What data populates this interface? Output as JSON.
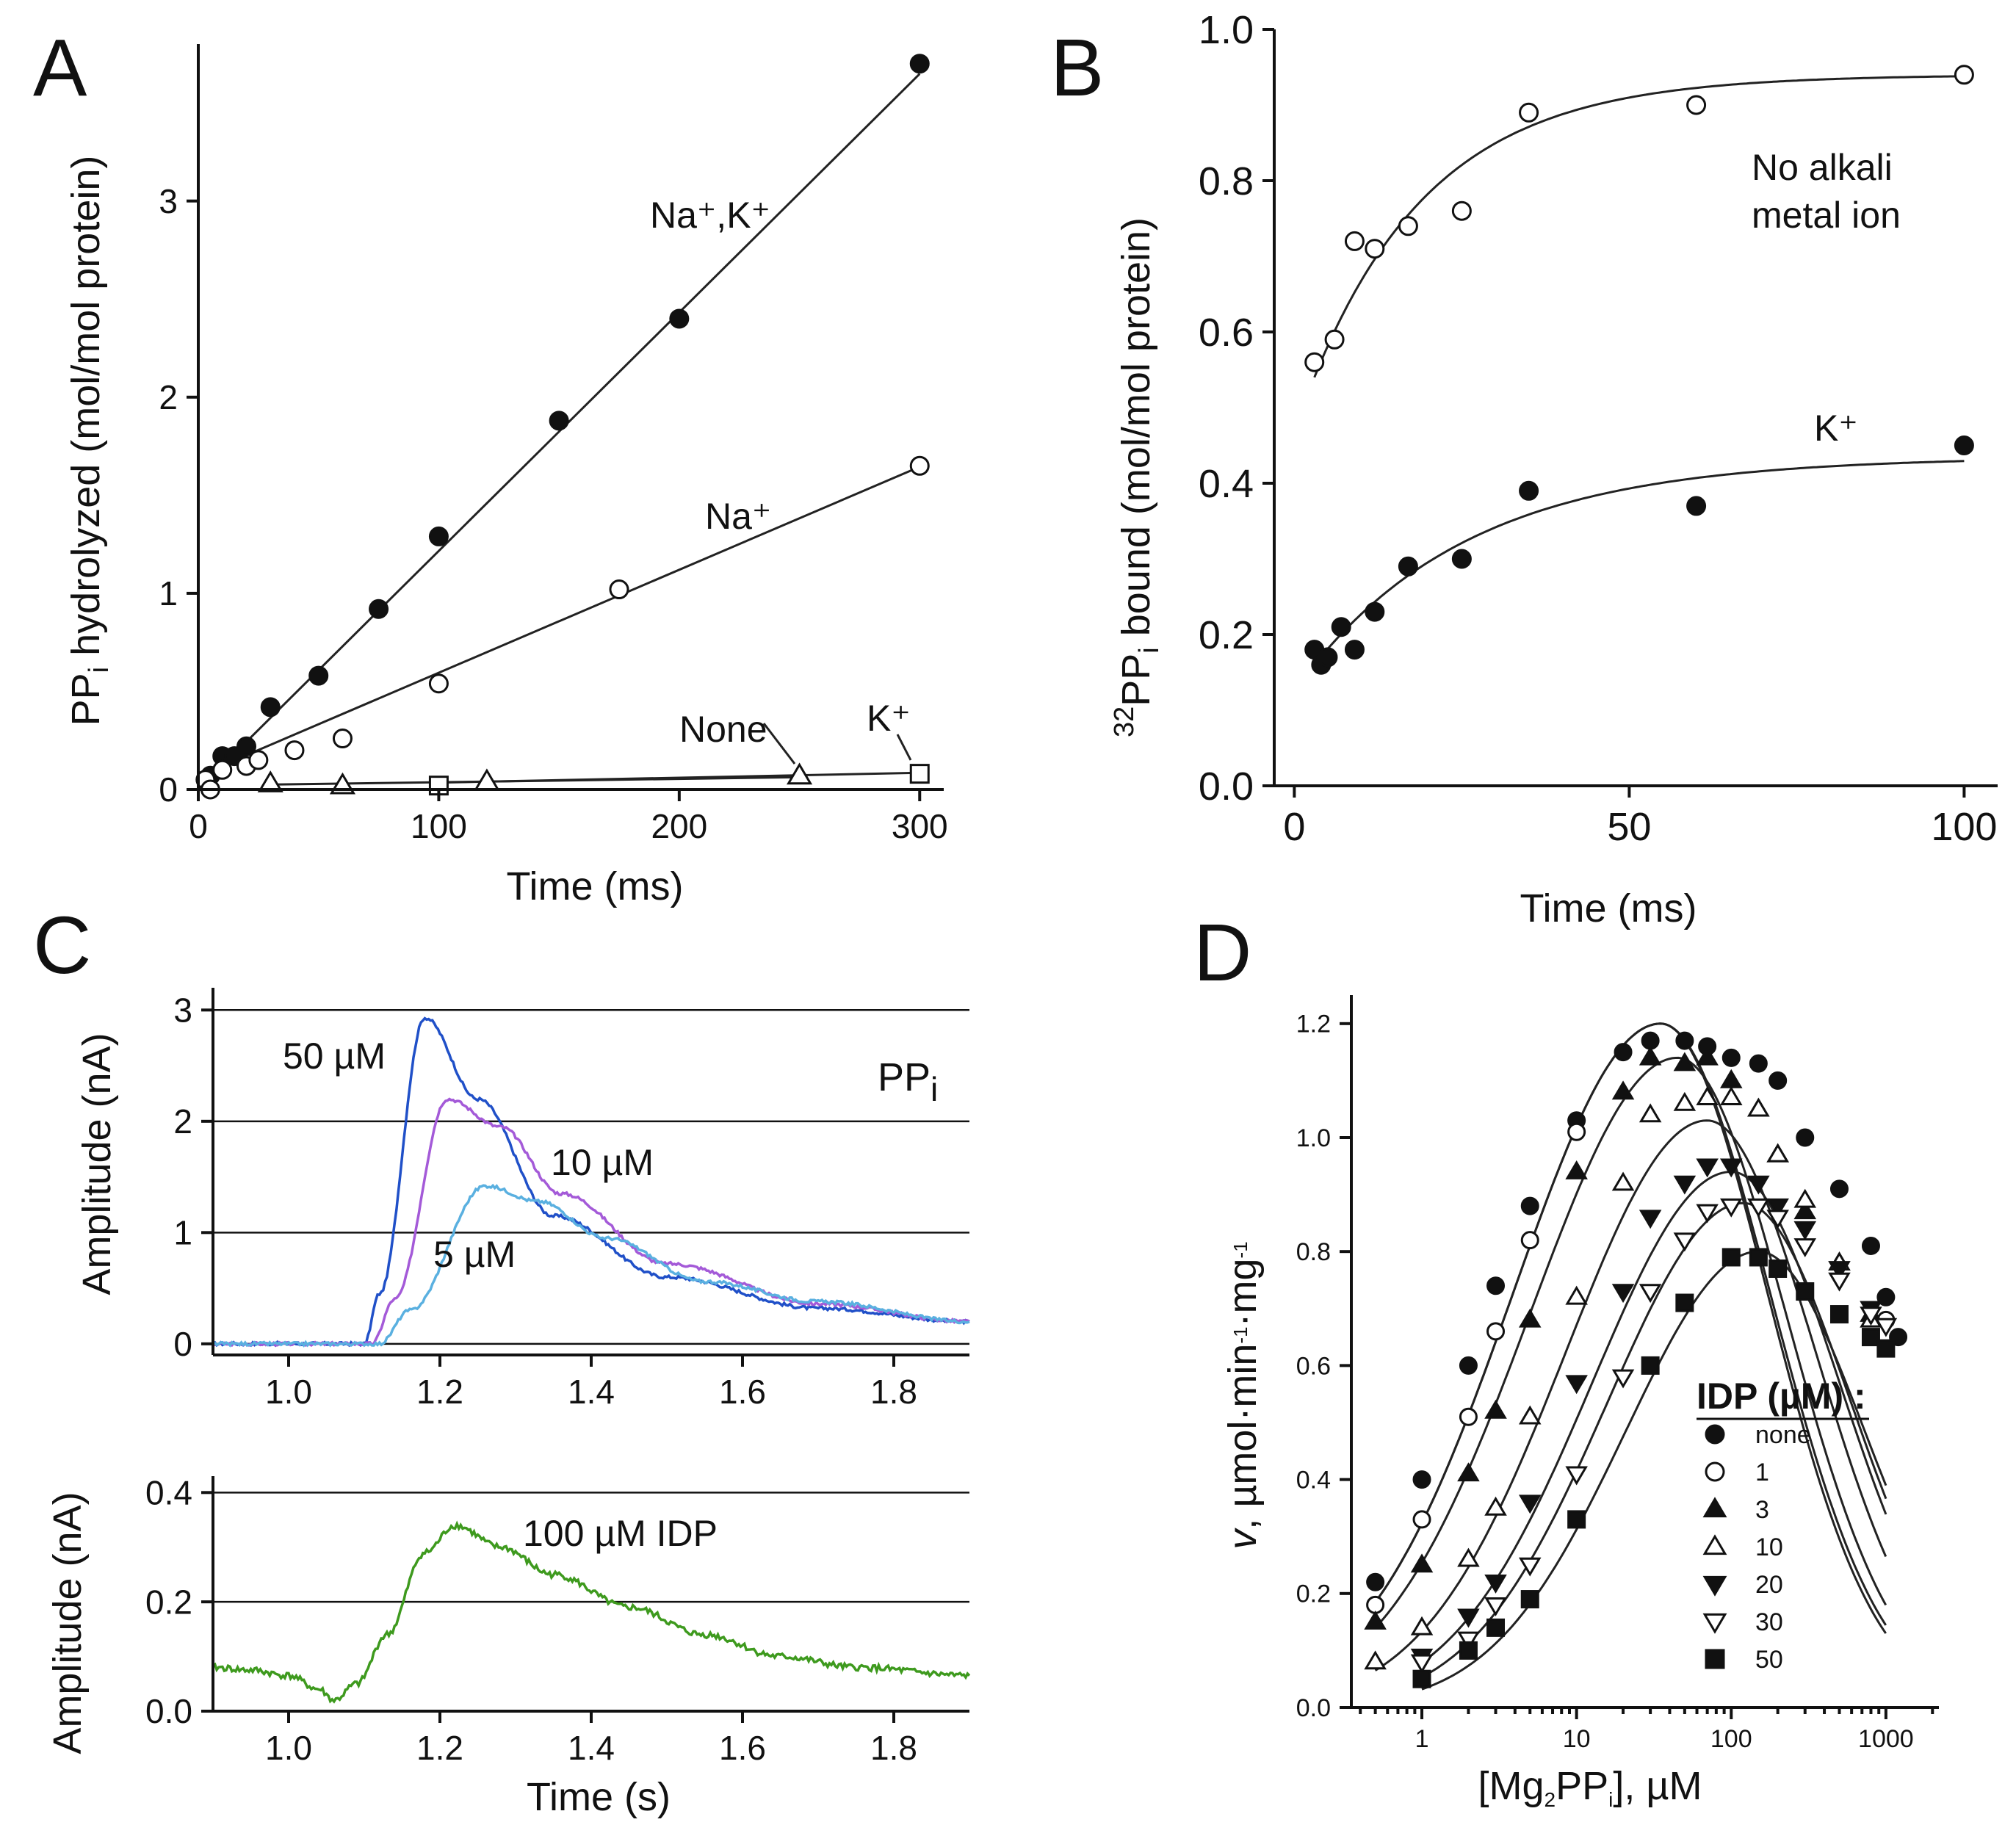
{
  "figure": {
    "panel_labels": [
      "A",
      "B",
      "C",
      "D"
    ]
  },
  "chart_data": [
    {
      "id": "A",
      "type": "scatter",
      "xlabel": "Time (ms)",
      "ylabel": "PPi hydrolyzed (mol/mol protein)",
      "ylabel_parts": {
        "pre": "PP",
        "sub": "i",
        "post": " hydrolyzed (mol/mol protein)"
      },
      "xlim": [
        0,
        310
      ],
      "ylim": [
        0,
        3.8
      ],
      "xticks": [
        0,
        100,
        200,
        300
      ],
      "yticks": [
        0,
        1,
        2,
        3
      ],
      "series": [
        {
          "name": "Na+,K+",
          "label": "Na⁺,K⁺",
          "marker": "filled-circle",
          "slope": 0.01216,
          "intercept": 0,
          "x": [
            5,
            10,
            15,
            20,
            30,
            50,
            75,
            100,
            150,
            200,
            300
          ],
          "y": [
            0.07,
            0.17,
            0.17,
            0.22,
            0.42,
            0.58,
            0.92,
            1.29,
            1.88,
            2.4,
            3.7
          ]
        },
        {
          "name": "Na+",
          "label": "Na⁺",
          "marker": "open-circle",
          "slope": 0.00525,
          "intercept": 0.07,
          "x": [
            3,
            5,
            10,
            20,
            25,
            40,
            60,
            100,
            175,
            300
          ],
          "y": [
            0.05,
            0.0,
            0.1,
            0.12,
            0.15,
            0.2,
            0.26,
            0.54,
            1.02,
            1.65
          ]
        },
        {
          "name": "None",
          "label": "None",
          "marker": "open-triangle",
          "slope": 0.00017,
          "intercept": 0.02,
          "x": [
            30,
            60,
            120,
            250
          ],
          "y": [
            0.03,
            0.02,
            0.04,
            0.07
          ]
        },
        {
          "name": "K+",
          "label": "K⁺",
          "marker": "open-square",
          "slope": 0.00025,
          "intercept": 0.01,
          "x": [
            100,
            300
          ],
          "y": [
            0.02,
            0.08
          ]
        }
      ]
    },
    {
      "id": "B",
      "type": "scatter",
      "xlabel": "Time (ms)",
      "ylabel": "32PPi bound (mol/mol protein)",
      "ylabel_parts": {
        "sup": "32",
        "pre": "PP",
        "sub": "i",
        "post": " bound (mol/mol protein)"
      },
      "xlim": [
        -3,
        105
      ],
      "ylim": [
        0,
        1.0
      ],
      "xticks": [
        0,
        50,
        100
      ],
      "yticks": [
        0.0,
        0.2,
        0.4,
        0.6,
        0.8,
        1.0
      ],
      "series": [
        {
          "name": "No alkali metal ion",
          "label_lines": [
            "No alkali",
            "metal ion"
          ],
          "marker": "open-circle",
          "fit": {
            "a": 0.94,
            "b": 0.4,
            "k": 0.055,
            "x0": 3
          },
          "x": [
            3,
            6,
            9,
            12,
            17,
            25,
            35,
            60,
            100
          ],
          "y": [
            0.56,
            0.59,
            0.72,
            0.71,
            0.74,
            0.76,
            0.89,
            0.9,
            0.94
          ]
        },
        {
          "name": "K+",
          "label": "K⁺",
          "marker": "filled-circle",
          "fit": {
            "a": 0.435,
            "b": 0.275,
            "k": 0.04,
            "x0": 3
          },
          "x": [
            3,
            4,
            5,
            7,
            9,
            12,
            17,
            25,
            35,
            60,
            100
          ],
          "y": [
            0.18,
            0.16,
            0.17,
            0.21,
            0.18,
            0.23,
            0.29,
            0.3,
            0.39,
            0.37,
            0.45
          ]
        }
      ]
    },
    {
      "id": "C-top",
      "type": "line",
      "xlabel": "",
      "ylabel": "Amplitude (nA)",
      "xlim": [
        0.9,
        1.9
      ],
      "ylim": [
        -0.1,
        3.2
      ],
      "xticks": [
        1.0,
        1.2,
        1.4,
        1.6,
        1.8
      ],
      "yticks": [
        0,
        1,
        2,
        3
      ],
      "grid": true,
      "annotation": "PPi",
      "series": [
        {
          "name": "50 µM",
          "label": "50 µM",
          "color": "#2050c8",
          "x": [
            0.9,
            1.1,
            1.12,
            1.18,
            1.25,
            1.35,
            1.5,
            1.7,
            1.9
          ],
          "y": [
            0.0,
            0.0,
            0.45,
            2.93,
            2.2,
            1.15,
            0.6,
            0.32,
            0.2
          ]
        },
        {
          "name": "10 µM",
          "label": "10 µM",
          "color": "#a45ad8",
          "x": [
            0.9,
            1.11,
            1.14,
            1.21,
            1.28,
            1.36,
            1.5,
            1.7,
            1.9
          ],
          "y": [
            0.0,
            0.0,
            0.4,
            2.2,
            1.95,
            1.35,
            0.72,
            0.36,
            0.2
          ]
        },
        {
          "name": "5 µM",
          "label": "5 µM",
          "color": "#5ab0e0",
          "x": [
            0.9,
            1.12,
            1.16,
            1.26,
            1.33,
            1.42,
            1.55,
            1.7,
            1.9
          ],
          "y": [
            0.0,
            0.0,
            0.3,
            1.42,
            1.28,
            0.95,
            0.56,
            0.38,
            0.2
          ]
        }
      ]
    },
    {
      "id": "C-bottom",
      "type": "line",
      "xlabel": "Time (s)",
      "ylabel": "Amplitude (nA)",
      "xlim": [
        0.9,
        1.9
      ],
      "ylim": [
        0.0,
        0.43
      ],
      "xticks": [
        1.0,
        1.2,
        1.4,
        1.6,
        1.8
      ],
      "yticks": [
        0.0,
        0.2,
        0.4
      ],
      "grid": true,
      "series": [
        {
          "name": "100 µM IDP",
          "label": "100 µM IDP",
          "color": "#3e9a1e",
          "x": [
            0.9,
            0.95,
            1.0,
            1.04,
            1.06,
            1.09,
            1.13,
            1.18,
            1.22,
            1.28,
            1.35,
            1.45,
            1.55,
            1.65,
            1.75,
            1.9
          ],
          "y": [
            0.08,
            0.075,
            0.065,
            0.04,
            0.02,
            0.05,
            0.14,
            0.29,
            0.34,
            0.3,
            0.25,
            0.19,
            0.14,
            0.1,
            0.08,
            0.065
          ]
        }
      ]
    },
    {
      "id": "D",
      "type": "scatter",
      "xlabel": "[Mg2PPi], µM",
      "xlabel_parts": {
        "pre": "[Mg",
        "sub1": "2",
        "mid": "PP",
        "sub2": "i",
        "post": "], µM"
      },
      "ylabel": "v, µmol·min-1·mg-1",
      "ylabel_parts": {
        "v": "v",
        "a": ", µmol·min",
        "s1": "-1",
        "b": "·mg",
        "s2": "-1"
      },
      "xscale": "log",
      "xlim": [
        0.35,
        2200
      ],
      "ylim": [
        0.0,
        1.25
      ],
      "xticks": [
        1,
        10,
        100,
        1000
      ],
      "yticks": [
        0.0,
        0.2,
        0.4,
        0.6,
        0.8,
        1.0,
        1.2
      ],
      "legend": {
        "title": "IDP (µM) :",
        "position": "right"
      },
      "series": [
        {
          "name": "none",
          "marker": "filled-circle",
          "fit": {
            "peak": 1.2,
            "xpk": 35,
            "ahi": 1.0,
            "alo": 0.55
          },
          "x": [
            0.5,
            1,
            2,
            3,
            5,
            10,
            20,
            30,
            50,
            70,
            100,
            150,
            200,
            300,
            500,
            800,
            1000,
            1200
          ],
          "y": [
            0.22,
            0.4,
            0.6,
            0.74,
            0.88,
            1.03,
            1.15,
            1.17,
            1.17,
            1.16,
            1.14,
            1.13,
            1.1,
            1.0,
            0.91,
            0.81,
            0.72,
            0.65
          ]
        },
        {
          "name": "1",
          "marker": "open-circle",
          "fit": {
            "peak": 1.2,
            "xpk": 35,
            "ahi": 1.05,
            "alo": 0.55
          },
          "x": [
            0.5,
            1,
            2,
            3,
            5,
            10,
            1000
          ],
          "y": [
            0.18,
            0.33,
            0.51,
            0.66,
            0.82,
            1.01,
            0.68
          ]
        },
        {
          "name": "3",
          "marker": "filled-triangle",
          "fit": {
            "peak": 1.14,
            "xpk": 45,
            "ahi": 1.02,
            "alo": 0.55
          },
          "x": [
            0.5,
            1,
            2,
            3,
            5,
            10,
            20,
            30,
            50,
            70,
            100,
            150,
            200,
            300,
            500,
            800
          ],
          "y": [
            0.15,
            0.25,
            0.41,
            0.52,
            0.68,
            0.94,
            1.08,
            1.14,
            1.13,
            1.14,
            1.1,
            1.05,
            0.97,
            0.87,
            0.78,
            0.69
          ]
        },
        {
          "name": "10",
          "marker": "open-triangle",
          "fit": {
            "peak": 1.03,
            "xpk": 70,
            "ahi": 1.02,
            "alo": 0.6
          },
          "x": [
            0.5,
            1,
            2,
            3,
            5,
            10,
            20,
            30,
            50,
            70,
            100,
            150,
            200,
            300,
            500,
            800
          ],
          "y": [
            0.08,
            0.14,
            0.26,
            0.35,
            0.51,
            0.72,
            0.92,
            1.04,
            1.06,
            1.07,
            1.07,
            1.05,
            0.97,
            0.89,
            0.78,
            0.68
          ]
        },
        {
          "name": "20",
          "marker": "filled-inverted-triangle",
          "fit": {
            "peak": 0.94,
            "xpk": 100,
            "ahi": 1.02,
            "alo": 0.62
          },
          "x": [
            1,
            2,
            3,
            5,
            10,
            20,
            30,
            50,
            70,
            100,
            150,
            200,
            300,
            500,
            800
          ],
          "y": [
            0.09,
            0.16,
            0.22,
            0.36,
            0.57,
            0.73,
            0.86,
            0.92,
            0.95,
            0.95,
            0.92,
            0.88,
            0.84,
            0.77,
            0.7
          ]
        },
        {
          "name": "30",
          "marker": "open-inverted-triangle",
          "fit": {
            "peak": 0.885,
            "xpk": 120,
            "ahi": 1.04,
            "alo": 0.65
          },
          "x": [
            1,
            2,
            3,
            5,
            10,
            20,
            30,
            50,
            70,
            100,
            150,
            200,
            300,
            500,
            800,
            1000
          ],
          "y": [
            0.08,
            0.12,
            0.18,
            0.25,
            0.41,
            0.58,
            0.73,
            0.82,
            0.87,
            0.88,
            0.88,
            0.86,
            0.81,
            0.75,
            0.69,
            0.67
          ]
        },
        {
          "name": "50",
          "marker": "filled-square",
          "fit": {
            "peak": 0.8,
            "xpk": 150,
            "ahi": 1.06,
            "alo": 0.68
          },
          "x": [
            1,
            2,
            3,
            5,
            10,
            30,
            50,
            100,
            150,
            200,
            300,
            500,
            800,
            1000
          ],
          "y": [
            0.05,
            0.1,
            0.14,
            0.19,
            0.33,
            0.6,
            0.71,
            0.79,
            0.79,
            0.77,
            0.73,
            0.69,
            0.65,
            0.63
          ]
        }
      ]
    }
  ]
}
